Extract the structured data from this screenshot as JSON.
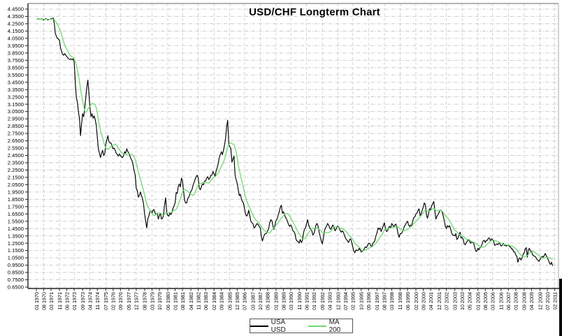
{
  "title": "USD/CHF Longterm Chart",
  "legend": {
    "items": [
      {
        "label": "USA USD",
        "color": "#000000"
      },
      {
        "label": "MA 200",
        "color": "#6fd96f"
      }
    ]
  },
  "colors": {
    "background": "#ffffff",
    "grid_horizontal": "#c0c0c0",
    "grid_vertical": "#c9c9c9",
    "axis": "#222222",
    "frame_top": "#999999",
    "frame_right": "#aaaaaa",
    "price_line": "#000000",
    "ma_line": "#6fd96f",
    "tick_text": "#000000"
  },
  "chart_data": {
    "type": "line",
    "title": "USD/CHF Longterm Chart",
    "xlabel": "",
    "ylabel": "",
    "grid": true,
    "legend_position": "bottom-center",
    "x_start": "1970-01",
    "x_interval": "monthly",
    "x_tick_labels": [
      "01 1970",
      "08 1970",
      "03 1971",
      "11 1971",
      "06 1972",
      "01 1973",
      "09 1973",
      "04 1974",
      "11 1974",
      "07 1975",
      "02 1976",
      "09 1976",
      "05 1977",
      "12 1977",
      "08 1978",
      "03 1979",
      "10 1979",
      "06 1980",
      "01 1981",
      "08 1981",
      "04 1982",
      "11 1982",
      "06 1983",
      "02 1984",
      "09 1984",
      "05 1985",
      "12 1985",
      "07 1986",
      "03 1987",
      "10 1987",
      "05 1988",
      "01 1989",
      "08 1989",
      "03 1990",
      "11 1990",
      "06 1991",
      "01 1992",
      "09 1992",
      "04 1993",
      "12 1993",
      "07 1994",
      "02 1995",
      "10 1995",
      "05 1996",
      "01 1997",
      "08 1997",
      "03 1998",
      "11 1998",
      "06 1999",
      "02 2000",
      "09 2000",
      "04 2001",
      "12 2001",
      "07 2002",
      "03 2003",
      "10 2003",
      "05 2004",
      "01 2005",
      "08 2005",
      "03 2006",
      "11 2006",
      "06 2007",
      "01 2008",
      "09 2008",
      "04 2009",
      "12 2009",
      "07 2010",
      "02 2011"
    ],
    "y_axis": {
      "min": 0.65,
      "max": 4.45,
      "tick_step": 0.1,
      "decimals": 4
    },
    "ylim": [
      0.65,
      4.45
    ],
    "series": [
      {
        "name": "USA USD",
        "color": "#000000",
        "values": [
          4.31,
          4.31,
          4.32,
          4.31,
          4.31,
          4.32,
          4.31,
          4.3,
          4.31,
          4.32,
          4.31,
          4.3,
          4.31,
          4.31,
          4.32,
          4.31,
          4.33,
          4.26,
          4.12,
          4.08,
          4.05,
          4.04,
          4.02,
          3.92,
          3.87,
          3.83,
          3.82,
          3.84,
          3.82,
          3.8,
          3.78,
          3.77,
          3.76,
          3.77,
          3.76,
          3.77,
          3.73,
          3.45,
          3.24,
          3.18,
          3.05,
          2.95,
          2.72,
          2.88,
          3.02,
          2.98,
          3.1,
          3.24,
          3.38,
          3.48,
          3.3,
          3.1,
          2.98,
          3.02,
          2.96,
          2.99,
          2.94,
          2.86,
          2.7,
          2.54,
          2.48,
          2.42,
          2.48,
          2.52,
          2.45,
          2.47,
          2.6,
          2.66,
          2.72,
          2.64,
          2.62,
          2.62,
          2.58,
          2.54,
          2.55,
          2.52,
          2.48,
          2.46,
          2.44,
          2.47,
          2.45,
          2.43,
          2.42,
          2.45,
          2.5,
          2.48,
          2.54,
          2.5,
          2.48,
          2.44,
          2.4,
          2.38,
          2.32,
          2.24,
          2.18,
          2.0,
          1.97,
          1.88,
          1.9,
          1.95,
          1.9,
          1.86,
          1.78,
          1.65,
          1.55,
          1.46,
          1.58,
          1.62,
          1.68,
          1.69,
          1.66,
          1.7,
          1.71,
          1.66,
          1.65,
          1.66,
          1.58,
          1.63,
          1.66,
          1.58,
          1.59,
          1.64,
          1.78,
          1.87,
          1.67,
          1.63,
          1.62,
          1.66,
          1.64,
          1.67,
          1.73,
          1.76,
          1.8,
          1.94,
          1.93,
          2.03,
          2.06,
          2.02,
          2.14,
          2.1,
          1.96,
          1.84,
          1.8,
          1.8,
          1.86,
          1.88,
          1.92,
          1.96,
          1.98,
          2.04,
          2.08,
          2.12,
          2.16,
          2.18,
          2.14,
          2.0,
          1.98,
          2.02,
          2.06,
          2.05,
          2.1,
          2.1,
          2.14,
          2.16,
          2.12,
          2.14,
          2.18,
          2.18,
          2.23,
          2.2,
          2.16,
          2.24,
          2.28,
          2.34,
          2.42,
          2.46,
          2.5,
          2.46,
          2.52,
          2.59,
          2.68,
          2.84,
          2.93,
          2.6,
          2.57,
          2.54,
          2.36,
          2.4,
          2.44,
          2.18,
          2.12,
          2.07,
          1.98,
          1.9,
          1.92,
          1.86,
          1.82,
          1.8,
          1.72,
          1.65,
          1.62,
          1.64,
          1.7,
          1.63,
          1.55,
          1.53,
          1.52,
          1.46,
          1.47,
          1.5,
          1.52,
          1.5,
          1.48,
          1.46,
          1.34,
          1.28,
          1.33,
          1.37,
          1.38,
          1.39,
          1.42,
          1.45,
          1.53,
          1.57,
          1.56,
          1.49,
          1.44,
          1.5,
          1.56,
          1.58,
          1.63,
          1.68,
          1.74,
          1.77,
          1.66,
          1.68,
          1.64,
          1.6,
          1.58,
          1.54,
          1.5,
          1.48,
          1.5,
          1.47,
          1.42,
          1.41,
          1.38,
          1.3,
          1.28,
          1.27,
          1.25,
          1.3,
          1.26,
          1.28,
          1.38,
          1.44,
          1.46,
          1.52,
          1.57,
          1.5,
          1.46,
          1.44,
          1.42,
          1.36,
          1.38,
          1.44,
          1.5,
          1.52,
          1.48,
          1.4,
          1.34,
          1.28,
          1.24,
          1.32,
          1.42,
          1.46,
          1.48,
          1.52,
          1.5,
          1.46,
          1.44,
          1.47,
          1.5,
          1.47,
          1.42,
          1.44,
          1.48,
          1.48,
          1.46,
          1.42,
          1.4,
          1.42,
          1.4,
          1.36,
          1.32,
          1.3,
          1.28,
          1.26,
          1.3,
          1.31,
          1.26,
          1.2,
          1.14,
          1.12,
          1.16,
          1.15,
          1.15,
          1.18,
          1.16,
          1.13,
          1.14,
          1.15,
          1.18,
          1.2,
          1.19,
          1.22,
          1.25,
          1.25,
          1.22,
          1.2,
          1.25,
          1.26,
          1.29,
          1.35,
          1.39,
          1.46,
          1.44,
          1.46,
          1.41,
          1.45,
          1.49,
          1.53,
          1.45,
          1.41,
          1.42,
          1.46,
          1.48,
          1.46,
          1.52,
          1.5,
          1.47,
          1.5,
          1.51,
          1.46,
          1.38,
          1.33,
          1.38,
          1.38,
          1.4,
          1.43,
          1.48,
          1.5,
          1.53,
          1.55,
          1.5,
          1.48,
          1.5,
          1.48,
          1.56,
          1.6,
          1.61,
          1.65,
          1.66,
          1.7,
          1.72,
          1.63,
          1.65,
          1.7,
          1.74,
          1.8,
          1.78,
          1.64,
          1.59,
          1.65,
          1.72,
          1.71,
          1.76,
          1.79,
          1.82,
          1.69,
          1.58,
          1.62,
          1.64,
          1.67,
          1.7,
          1.7,
          1.68,
          1.62,
          1.56,
          1.48,
          1.45,
          1.49,
          1.47,
          1.49,
          1.45,
          1.39,
          1.36,
          1.36,
          1.35,
          1.38,
          1.3,
          1.32,
          1.36,
          1.4,
          1.32,
          1.33,
          1.3,
          1.24,
          1.23,
          1.26,
          1.28,
          1.3,
          1.28,
          1.25,
          1.27,
          1.26,
          1.25,
          1.19,
          1.14,
          1.14,
          1.18,
          1.16,
          1.19,
          1.2,
          1.24,
          1.28,
          1.29,
          1.26,
          1.29,
          1.29,
          1.32,
          1.32,
          1.28,
          1.31,
          1.3,
          1.27,
          1.22,
          1.23,
          1.24,
          1.23,
          1.25,
          1.24,
          1.21,
          1.22,
          1.25,
          1.22,
          1.22,
          1.21,
          1.22,
          1.23,
          1.2,
          1.2,
          1.17,
          1.17,
          1.13,
          1.13,
          1.09,
          1.07,
          0.99,
          1.04,
          1.05,
          1.02,
          1.05,
          1.1,
          1.12,
          1.17,
          1.19,
          1.06,
          1.16,
          1.18,
          1.14,
          1.14,
          1.09,
          1.08,
          1.07,
          1.06,
          1.03,
          1.02,
          1.0,
          1.03,
          1.05,
          1.07,
          1.06,
          1.08,
          1.11,
          1.08,
          1.05,
          1.02,
          0.98,
          0.96,
          0.99,
          0.94
        ]
      },
      {
        "name": "MA 200",
        "color": "#6fd96f",
        "derived": "moving_average_of_series_0",
        "window_months": 10
      }
    ]
  }
}
